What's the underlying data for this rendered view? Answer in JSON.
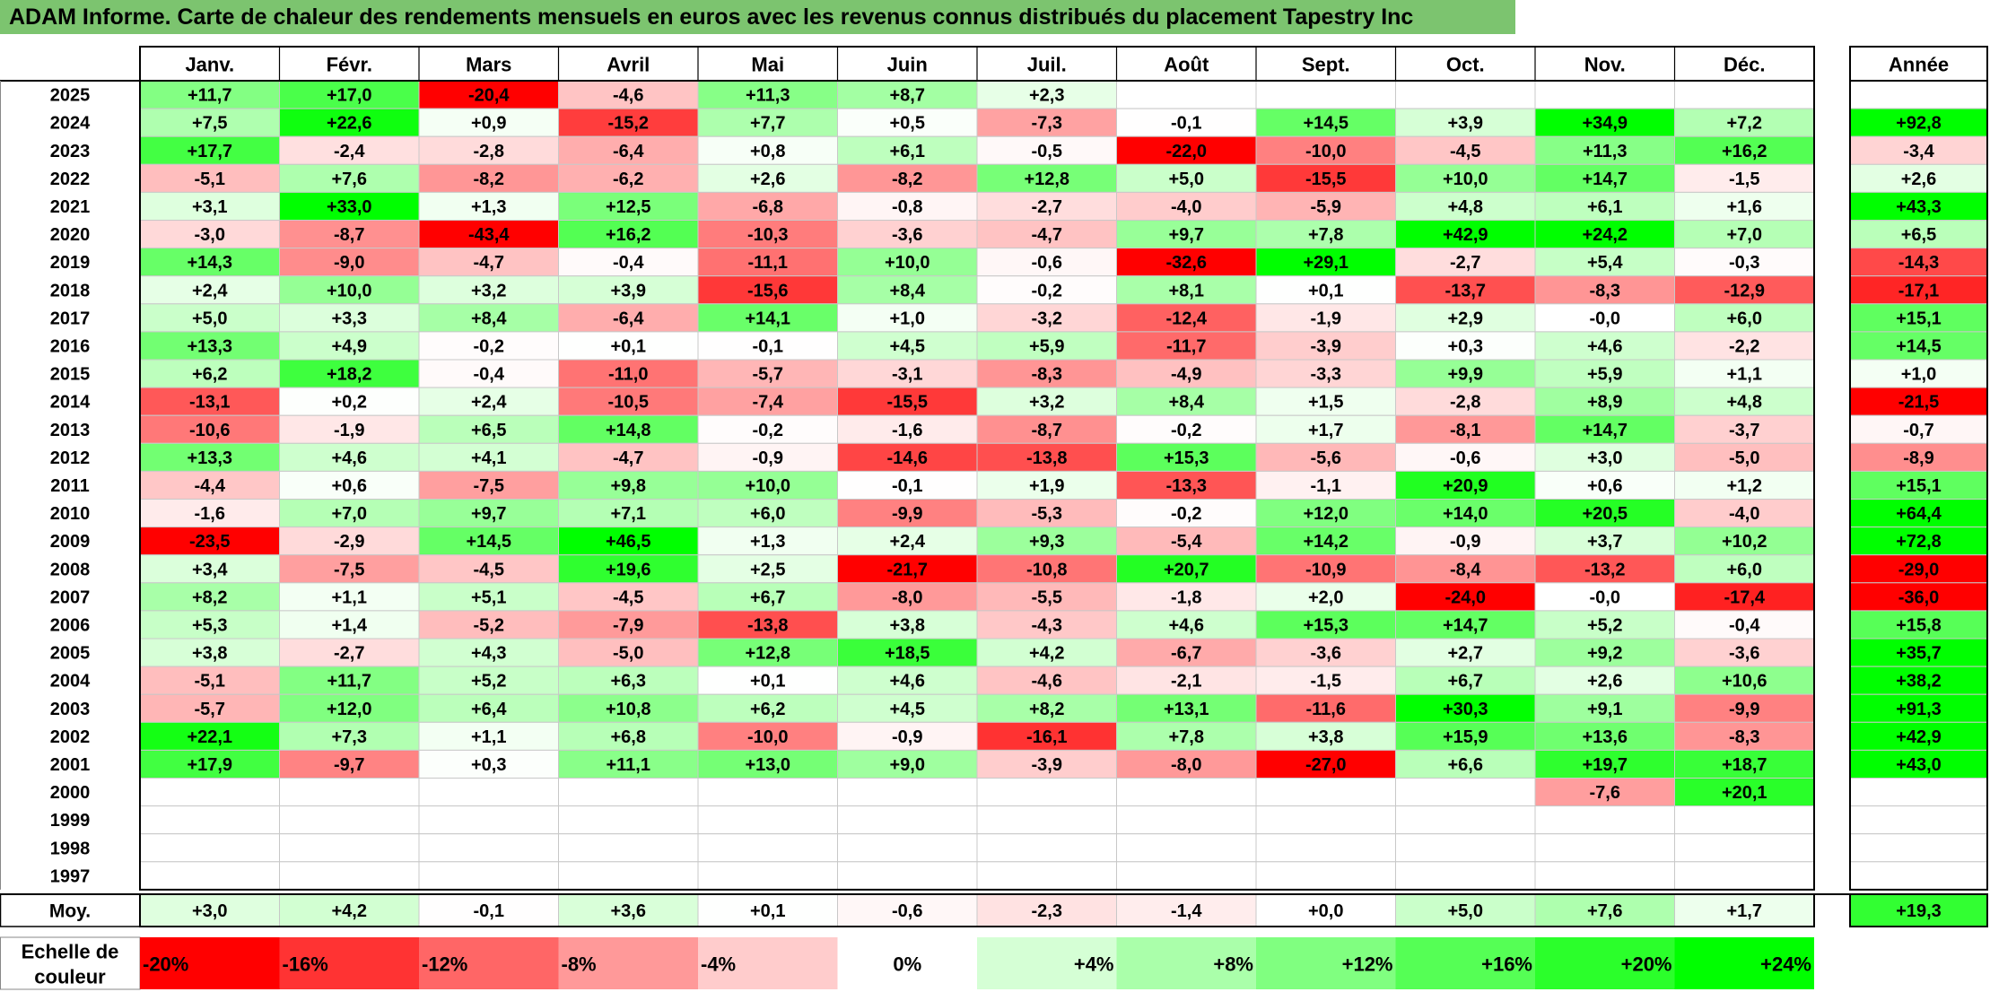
{
  "title": "ADAM Informe. Carte de chaleur des rendements mensuels en euros avec les revenus connus distribués du placement Tapestry Inc",
  "chart_data": {
    "type": "heatmap",
    "columns": [
      "Janv.",
      "Févr.",
      "Mars",
      "Avril",
      "Mai",
      "Juin",
      "Juil.",
      "Août",
      "Sept.",
      "Oct.",
      "Nov.",
      "Déc."
    ],
    "year_column_label": "Année",
    "rows": [
      {
        "year": "2025",
        "values": [
          "+11,7",
          "+17,0",
          "-20,4",
          "-4,6",
          "+11,3",
          "+8,7",
          "+2,3",
          "",
          "",
          "",
          "",
          ""
        ],
        "annual": ""
      },
      {
        "year": "2024",
        "values": [
          "+7,5",
          "+22,6",
          "+0,9",
          "-15,2",
          "+7,7",
          "+0,5",
          "-7,3",
          "-0,1",
          "+14,5",
          "+3,9",
          "+34,9",
          "+7,2"
        ],
        "annual": "+92,8"
      },
      {
        "year": "2023",
        "values": [
          "+17,7",
          "-2,4",
          "-2,8",
          "-6,4",
          "+0,8",
          "+6,1",
          "-0,5",
          "-22,0",
          "-10,0",
          "-4,5",
          "+11,3",
          "+16,2"
        ],
        "annual": "-3,4"
      },
      {
        "year": "2022",
        "values": [
          "-5,1",
          "+7,6",
          "-8,2",
          "-6,2",
          "+2,6",
          "-8,2",
          "+12,8",
          "+5,0",
          "-15,5",
          "+10,0",
          "+14,7",
          "-1,5"
        ],
        "annual": "+2,6"
      },
      {
        "year": "2021",
        "values": [
          "+3,1",
          "+33,0",
          "+1,3",
          "+12,5",
          "-6,8",
          "-0,8",
          "-2,7",
          "-4,0",
          "-5,9",
          "+4,8",
          "+6,1",
          "+1,6"
        ],
        "annual": "+43,3"
      },
      {
        "year": "2020",
        "values": [
          "-3,0",
          "-8,7",
          "-43,4",
          "+16,2",
          "-10,3",
          "-3,6",
          "-4,7",
          "+9,7",
          "+7,8",
          "+42,9",
          "+24,2",
          "+7,0"
        ],
        "annual": "+6,5"
      },
      {
        "year": "2019",
        "values": [
          "+14,3",
          "-9,0",
          "-4,7",
          "-0,4",
          "-11,1",
          "+10,0",
          "-0,6",
          "-32,6",
          "+29,1",
          "-2,7",
          "+5,4",
          "-0,3"
        ],
        "annual": "-14,3"
      },
      {
        "year": "2018",
        "values": [
          "+2,4",
          "+10,0",
          "+3,2",
          "+3,9",
          "-15,6",
          "+8,4",
          "-0,2",
          "+8,1",
          "+0,1",
          "-13,7",
          "-8,3",
          "-12,9"
        ],
        "annual": "-17,1"
      },
      {
        "year": "2017",
        "values": [
          "+5,0",
          "+3,3",
          "+8,4",
          "-6,4",
          "+14,1",
          "+1,0",
          "-3,2",
          "-12,4",
          "-1,9",
          "+2,9",
          "-0,0",
          "+6,0"
        ],
        "annual": "+15,1"
      },
      {
        "year": "2016",
        "values": [
          "+13,3",
          "+4,9",
          "-0,2",
          "+0,1",
          "-0,1",
          "+4,5",
          "+5,9",
          "-11,7",
          "-3,9",
          "+0,3",
          "+4,6",
          "-2,2"
        ],
        "annual": "+14,5"
      },
      {
        "year": "2015",
        "values": [
          "+6,2",
          "+18,2",
          "-0,4",
          "-11,0",
          "-5,7",
          "-3,1",
          "-8,3",
          "-4,9",
          "-3,3",
          "+9,9",
          "+5,9",
          "+1,1"
        ],
        "annual": "+1,0"
      },
      {
        "year": "2014",
        "values": [
          "-13,1",
          "+0,2",
          "+2,4",
          "-10,5",
          "-7,4",
          "-15,5",
          "+3,2",
          "+8,4",
          "+1,5",
          "-2,8",
          "+8,9",
          "+4,8"
        ],
        "annual": "-21,5"
      },
      {
        "year": "2013",
        "values": [
          "-10,6",
          "-1,9",
          "+6,5",
          "+14,8",
          "-0,2",
          "-1,6",
          "-8,7",
          "-0,2",
          "+1,7",
          "-8,1",
          "+14,7",
          "-3,7"
        ],
        "annual": "-0,7"
      },
      {
        "year": "2012",
        "values": [
          "+13,3",
          "+4,6",
          "+4,1",
          "-4,7",
          "-0,9",
          "-14,6",
          "-13,8",
          "+15,3",
          "-5,6",
          "-0,6",
          "+3,0",
          "-5,0"
        ],
        "annual": "-8,9"
      },
      {
        "year": "2011",
        "values": [
          "-4,4",
          "+0,6",
          "-7,5",
          "+9,8",
          "+10,0",
          "-0,1",
          "+1,9",
          "-13,3",
          "-1,1",
          "+20,9",
          "+0,6",
          "+1,2"
        ],
        "annual": "+15,1"
      },
      {
        "year": "2010",
        "values": [
          "-1,6",
          "+7,0",
          "+9,7",
          "+7,1",
          "+6,0",
          "-9,9",
          "-5,3",
          "-0,2",
          "+12,0",
          "+14,0",
          "+20,5",
          "-4,0"
        ],
        "annual": "+64,4"
      },
      {
        "year": "2009",
        "values": [
          "-23,5",
          "-2,9",
          "+14,5",
          "+46,5",
          "+1,3",
          "+2,4",
          "+9,3",
          "-5,4",
          "+14,2",
          "-0,9",
          "+3,7",
          "+10,2"
        ],
        "annual": "+72,8"
      },
      {
        "year": "2008",
        "values": [
          "+3,4",
          "-7,5",
          "-4,5",
          "+19,6",
          "+2,5",
          "-21,7",
          "-10,8",
          "+20,7",
          "-10,9",
          "-8,4",
          "-13,2",
          "+6,0"
        ],
        "annual": "-29,0"
      },
      {
        "year": "2007",
        "values": [
          "+8,2",
          "+1,1",
          "+5,1",
          "-4,5",
          "+6,7",
          "-8,0",
          "-5,5",
          "-1,8",
          "+2,0",
          "-24,0",
          "-0,0",
          "-17,4"
        ],
        "annual": "-36,0"
      },
      {
        "year": "2006",
        "values": [
          "+5,3",
          "+1,4",
          "-5,2",
          "-7,9",
          "-13,8",
          "+3,8",
          "-4,3",
          "+4,6",
          "+15,3",
          "+14,7",
          "+5,2",
          "-0,4"
        ],
        "annual": "+15,8"
      },
      {
        "year": "2005",
        "values": [
          "+3,8",
          "-2,7",
          "+4,3",
          "-5,0",
          "+12,8",
          "+18,5",
          "+4,2",
          "-6,7",
          "-3,6",
          "+2,7",
          "+9,2",
          "-3,6"
        ],
        "annual": "+35,7"
      },
      {
        "year": "2004",
        "values": [
          "-5,1",
          "+11,7",
          "+5,2",
          "+6,3",
          "+0,1",
          "+4,6",
          "-4,6",
          "-2,1",
          "-1,5",
          "+6,7",
          "+2,6",
          "+10,6"
        ],
        "annual": "+38,2"
      },
      {
        "year": "2003",
        "values": [
          "-5,7",
          "+12,0",
          "+6,4",
          "+10,8",
          "+6,2",
          "+4,5",
          "+8,2",
          "+13,1",
          "-11,6",
          "+30,3",
          "+9,1",
          "-9,9"
        ],
        "annual": "+91,3"
      },
      {
        "year": "2002",
        "values": [
          "+22,1",
          "+7,3",
          "+1,1",
          "+6,8",
          "-10,0",
          "-0,9",
          "-16,1",
          "+7,8",
          "+3,8",
          "+15,9",
          "+13,6",
          "-8,3"
        ],
        "annual": "+42,9"
      },
      {
        "year": "2001",
        "values": [
          "+17,9",
          "-9,7",
          "+0,3",
          "+11,1",
          "+13,0",
          "+9,0",
          "-3,9",
          "-8,0",
          "-27,0",
          "+6,6",
          "+19,7",
          "+18,7"
        ],
        "annual": "+43,0"
      },
      {
        "year": "2000",
        "values": [
          "",
          "",
          "",
          "",
          "",
          "",
          "",
          "",
          "",
          "",
          "-7,6",
          "+20,1"
        ],
        "annual": ""
      },
      {
        "year": "1999",
        "values": [
          "",
          "",
          "",
          "",
          "",
          "",
          "",
          "",
          "",
          "",
          "",
          ""
        ],
        "annual": ""
      },
      {
        "year": "1998",
        "values": [
          "",
          "",
          "",
          "",
          "",
          "",
          "",
          "",
          "",
          "",
          "",
          ""
        ],
        "annual": ""
      },
      {
        "year": "1997",
        "values": [
          "",
          "",
          "",
          "",
          "",
          "",
          "",
          "",
          "",
          "",
          "",
          ""
        ],
        "annual": ""
      }
    ],
    "average": {
      "label": "Moy.",
      "values": [
        "+3,0",
        "+4,2",
        "-0,1",
        "+3,6",
        "+0,1",
        "-0,6",
        "-2,3",
        "-1,4",
        "+0,0",
        "+5,0",
        "+7,6",
        "+1,7"
      ],
      "annual": "+19,3"
    },
    "scale": {
      "label_line1": "Echelle de",
      "label_line2": "couleur",
      "steps": [
        "-20%",
        "-16%",
        "-12%",
        "-8%",
        "-4%",
        "0%",
        "+4%",
        "+8%",
        "+12%",
        "+16%",
        "+20%",
        "+24%"
      ]
    },
    "colors": {
      "negative_max": "#ff0000",
      "neutral": "#ffffff",
      "positive_max": "#00ff00",
      "title_bar": "#7cc46f"
    }
  }
}
